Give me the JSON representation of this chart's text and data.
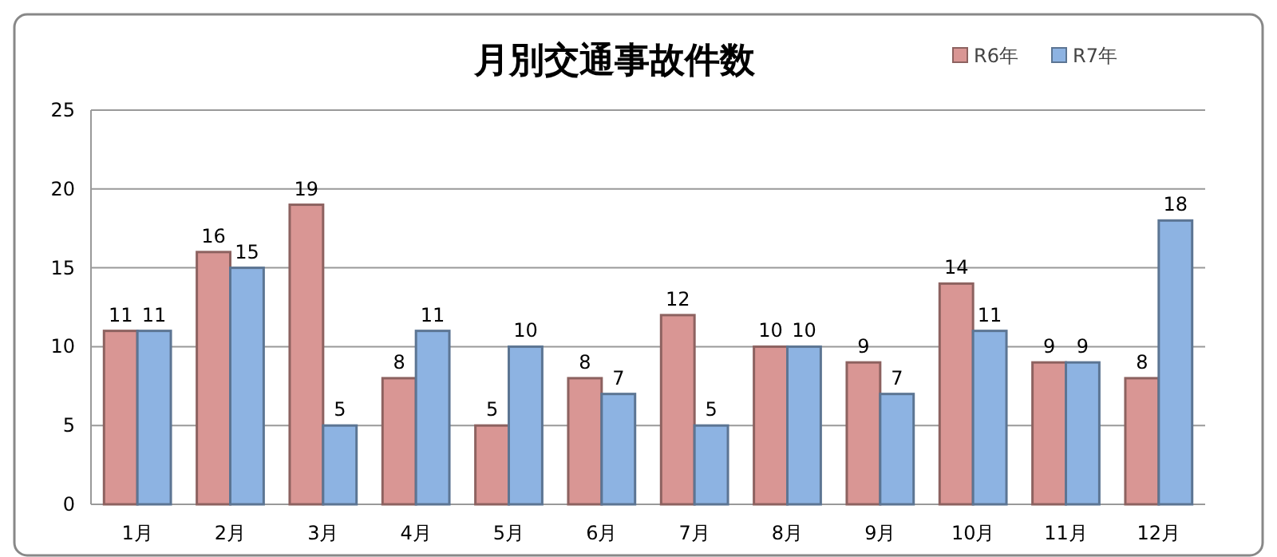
{
  "chart_data": {
    "type": "bar",
    "title": "月別交通事故件数",
    "categories": [
      "1月",
      "2月",
      "3月",
      "4月",
      "5月",
      "6月",
      "7月",
      "8月",
      "9月",
      "10月",
      "11月",
      "12月"
    ],
    "series": [
      {
        "name": "R6年",
        "color": "#d99694",
        "values": [
          11,
          16,
          19,
          8,
          5,
          8,
          12,
          10,
          9,
          14,
          9,
          8
        ]
      },
      {
        "name": "R7年",
        "color": "#8db3e2",
        "values": [
          11,
          15,
          5,
          11,
          10,
          7,
          5,
          10,
          7,
          11,
          9,
          18
        ]
      }
    ],
    "ylim": [
      0,
      25
    ],
    "yticks": [
      0,
      5,
      10,
      15,
      20,
      25
    ],
    "grid": "y",
    "legend": "top right",
    "data_labels": true
  }
}
